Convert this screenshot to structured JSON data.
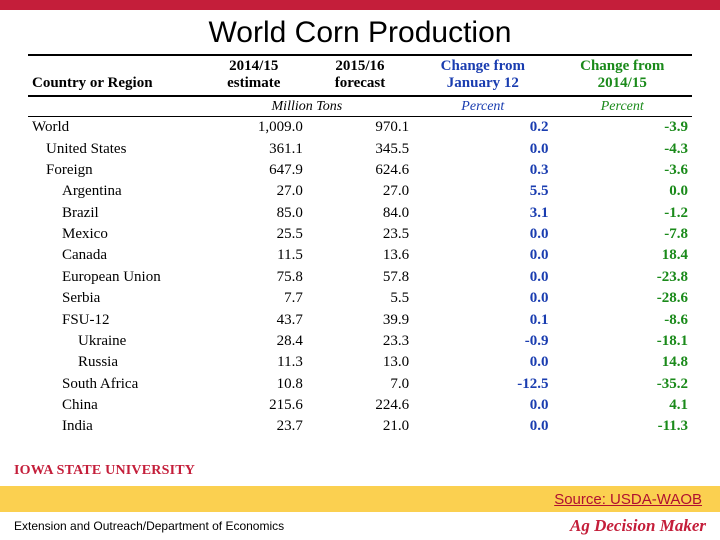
{
  "title": "World Corn Production",
  "header": {
    "country_label": "Country or Region",
    "col_est_top": "2014/15",
    "col_est_bot": "estimate",
    "col_fcst_top": "2015/16",
    "col_fcst_bot": "forecast",
    "col_chg1_top": "Change from",
    "col_chg1_bot": "January 12",
    "col_chg2_top": "Change from",
    "col_chg2_bot": "2014/15",
    "units_values": "Million Tons",
    "units_chg1": "Percent",
    "units_chg2": "Percent",
    "colors": {
      "chg1": "#1a3db0",
      "chg2": "#1a8a1a"
    }
  },
  "rows": [
    {
      "name": "World",
      "indent": 0,
      "est": "1,009.0",
      "fcst": "970.1",
      "chg1": "0.2",
      "chg2": "-3.9"
    },
    {
      "name": "United States",
      "indent": 1,
      "est": "361.1",
      "fcst": "345.5",
      "chg1": "0.0",
      "chg2": "-4.3"
    },
    {
      "name": "Foreign",
      "indent": 1,
      "est": "647.9",
      "fcst": "624.6",
      "chg1": "0.3",
      "chg2": "-3.6"
    },
    {
      "name": "Argentina",
      "indent": 2,
      "est": "27.0",
      "fcst": "27.0",
      "chg1": "5.5",
      "chg2": "0.0"
    },
    {
      "name": "Brazil",
      "indent": 2,
      "est": "85.0",
      "fcst": "84.0",
      "chg1": "3.1",
      "chg2": "-1.2"
    },
    {
      "name": "Mexico",
      "indent": 2,
      "est": "25.5",
      "fcst": "23.5",
      "chg1": "0.0",
      "chg2": "-7.8"
    },
    {
      "name": "Canada",
      "indent": 2,
      "est": "11.5",
      "fcst": "13.6",
      "chg1": "0.0",
      "chg2": "18.4"
    },
    {
      "name": "European Union",
      "indent": 2,
      "est": "75.8",
      "fcst": "57.8",
      "chg1": "0.0",
      "chg2": "-23.8"
    },
    {
      "name": "Serbia",
      "indent": 2,
      "est": "7.7",
      "fcst": "5.5",
      "chg1": "0.0",
      "chg2": "-28.6"
    },
    {
      "name": "FSU-12",
      "indent": 2,
      "est": "43.7",
      "fcst": "39.9",
      "chg1": "0.1",
      "chg2": "-8.6"
    },
    {
      "name": "Ukraine",
      "indent": 3,
      "est": "28.4",
      "fcst": "23.3",
      "chg1": "-0.9",
      "chg2": "-18.1"
    },
    {
      "name": "Russia",
      "indent": 3,
      "est": "11.3",
      "fcst": "13.0",
      "chg1": "0.0",
      "chg2": "14.8"
    },
    {
      "name": "South Africa",
      "indent": 2,
      "est": "10.8",
      "fcst": "7.0",
      "chg1": "-12.5",
      "chg2": "-35.2"
    },
    {
      "name": "China",
      "indent": 2,
      "est": "215.6",
      "fcst": "224.6",
      "chg1": "0.0",
      "chg2": "4.1"
    },
    {
      "name": "India",
      "indent": 2,
      "est": "23.7",
      "fcst": "21.0",
      "chg1": "0.0",
      "chg2": "-11.3"
    }
  ],
  "source": "Source: USDA-WAOB",
  "logo_text": "IOWA STATE UNIVERSITY",
  "dept": "Extension and Outreach/Department of Economics",
  "agdm": "Ag Decision Maker",
  "colors": {
    "top_bar": "#c41e3a",
    "stripe": "#fbd050",
    "source": "#b01030",
    "logo": "#c41e3a"
  }
}
